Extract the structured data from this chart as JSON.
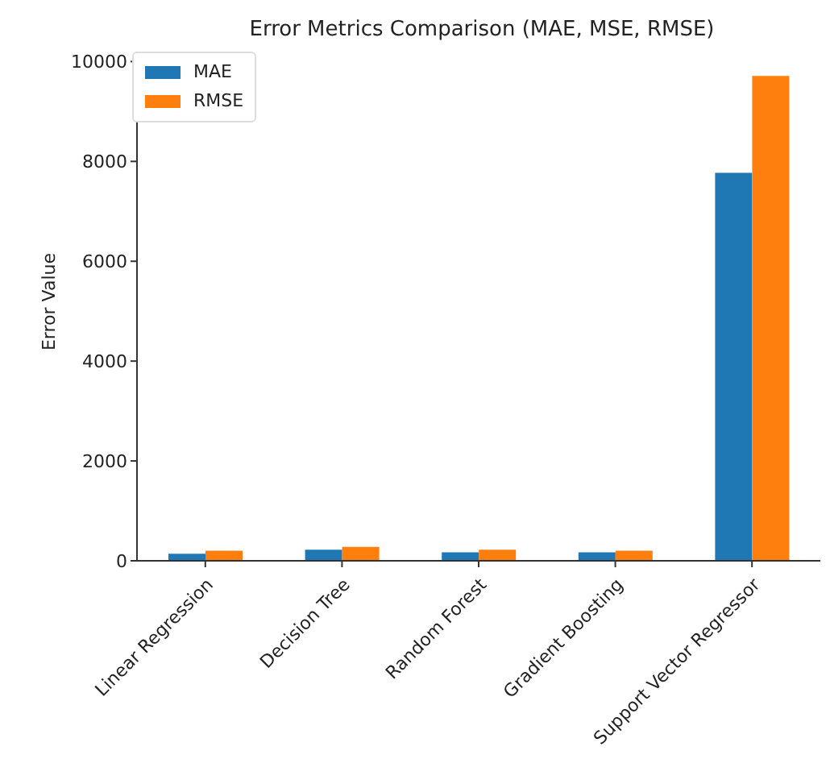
{
  "chart_data": {
    "type": "bar",
    "title": "Error Metrics Comparison (MAE, MSE, RMSE)",
    "ylabel": "Error Value",
    "categories": [
      "Linear Regression",
      "Decision Tree",
      "Random Forest",
      "Gradient Boosting",
      "Support Vector Regressor"
    ],
    "series": [
      {
        "name": "MAE",
        "color": "#1f77b4",
        "values": [
          140,
          220,
          170,
          170,
          7770
        ]
      },
      {
        "name": "RMSE",
        "color": "#ff7f0e",
        "values": [
          200,
          280,
          220,
          200,
          9710
        ]
      }
    ],
    "ylim": [
      0,
      10200
    ],
    "yticks": [
      0,
      2000,
      4000,
      6000,
      8000,
      10000
    ],
    "grid": false,
    "legend": "top left"
  }
}
